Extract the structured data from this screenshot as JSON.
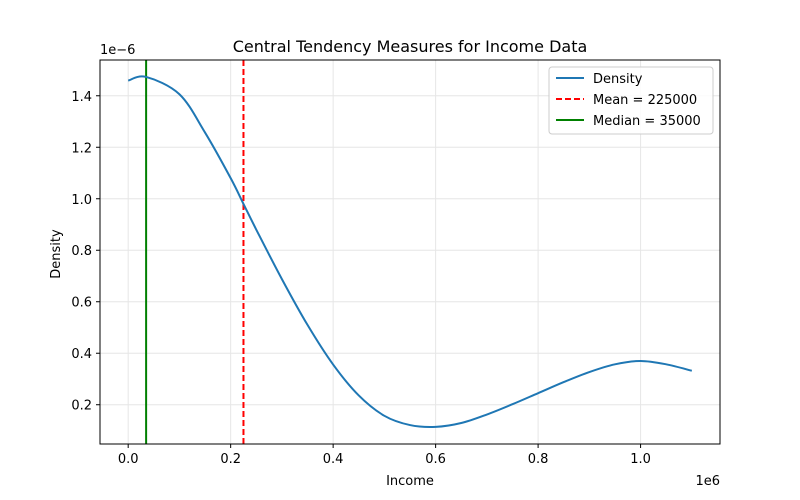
{
  "chart_data": {
    "type": "line",
    "title": "Central Tendency Measures for Income Data",
    "xlabel": "Income",
    "ylabel": "Density",
    "x_offset_label": "1e6",
    "y_offset_label": "1e−6",
    "xlim": [
      -55000,
      1155000
    ],
    "ylim": [
      4.75e-08,
      1.5389e-06
    ],
    "x_ticks": [
      0,
      200000,
      400000,
      600000,
      800000,
      1000000
    ],
    "x_tick_labels": [
      "0.0",
      "0.2",
      "0.4",
      "0.6",
      "0.8",
      "1.0"
    ],
    "y_ticks": [
      2e-07,
      4e-07,
      6e-07,
      8e-07,
      1e-06,
      1.2e-06,
      1.4e-06
    ],
    "y_tick_labels": [
      "0.2",
      "0.4",
      "0.6",
      "0.8",
      "1.0",
      "1.2",
      "1.4"
    ],
    "grid": true,
    "legend_position": "top-right",
    "series": [
      {
        "name": "Density",
        "color": "#1f77b4",
        "x": [
          0,
          35000,
          100000,
          150000,
          200000,
          225000,
          250000,
          300000,
          350000,
          400000,
          450000,
          500000,
          550000,
          600000,
          650000,
          700000,
          750000,
          800000,
          850000,
          900000,
          950000,
          1000000,
          1050000,
          1100000
        ],
        "y": [
          1.459e-06,
          1.473e-06,
          1.406e-06,
          1.257e-06,
          1.08e-06,
          9.8e-07,
          8.8e-07,
          6.88e-07,
          5.1e-07,
          3.56e-07,
          2.36e-07,
          1.57e-07,
          1.21e-07,
          1.14e-07,
          1.29e-07,
          1.62e-07,
          2.02e-07,
          2.45e-07,
          2.88e-07,
          3.27e-07,
          3.57e-07,
          3.7e-07,
          3.57e-07,
          3.32e-07
        ]
      }
    ],
    "vlines": [
      {
        "name": "Mean = 225000",
        "x": 225000,
        "color": "#ff0000",
        "style": "dashed"
      },
      {
        "name": "Median = 35000",
        "x": 35000,
        "color": "#008000",
        "style": "solid"
      }
    ]
  }
}
